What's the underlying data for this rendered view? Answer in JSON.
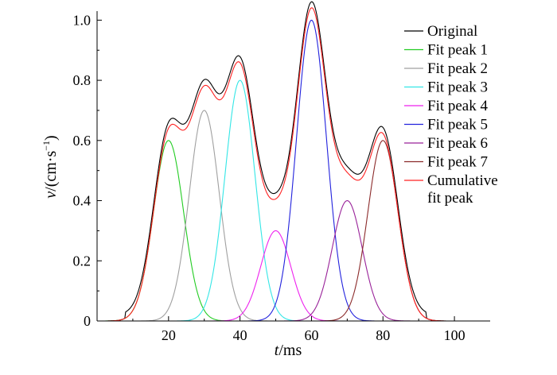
{
  "chart_data": {
    "type": "line",
    "title": "",
    "xlabel_italic": "t",
    "xlabel_unit": "/ms",
    "ylabel_italic": "v",
    "ylabel_unit": "/(cm·s",
    "ylabel_exp": "−1",
    "ylabel_close": ")",
    "xlim": [
      0,
      110
    ],
    "ylim": [
      0,
      1.03
    ],
    "xticks": [
      20,
      40,
      60,
      80,
      100
    ],
    "xtick_labels": [
      "20",
      "40",
      "60",
      "80",
      "100"
    ],
    "yticks": [
      0,
      0.2,
      0.4,
      0.6,
      0.8,
      1.0
    ],
    "ytick_labels": [
      "0",
      "0.2",
      "0.4",
      "0.6",
      "0.8",
      "1.0"
    ],
    "grid": false,
    "legend_position": "top-right",
    "peak_sigma_ms": 4.2,
    "original_offset": 0.02,
    "series": [
      {
        "name": "Original",
        "color": "#000000",
        "kind": "original"
      },
      {
        "name": "Fit peak 1",
        "color": "#22cc22",
        "kind": "gaussian",
        "center": 20,
        "amplitude": 0.6
      },
      {
        "name": "Fit peak 2",
        "color": "#a0a0a0",
        "kind": "gaussian",
        "center": 30,
        "amplitude": 0.7
      },
      {
        "name": "Fit peak 3",
        "color": "#33e6e6",
        "kind": "gaussian",
        "center": 40,
        "amplitude": 0.8
      },
      {
        "name": "Fit peak 4",
        "color": "#ee22ee",
        "kind": "gaussian",
        "center": 50,
        "amplitude": 0.3
      },
      {
        "name": "Fit peak 5",
        "color": "#2222dd",
        "kind": "gaussian",
        "center": 60,
        "amplitude": 1.0
      },
      {
        "name": "Fit peak 6",
        "color": "#992299",
        "kind": "gaussian",
        "center": 70,
        "amplitude": 0.4
      },
      {
        "name": "Fit peak 7",
        "color": "#8b2a2a",
        "kind": "gaussian",
        "center": 80,
        "amplitude": 0.6
      },
      {
        "name": "Cumulative\nfit peak",
        "color": "#ff2020",
        "kind": "cumulative"
      }
    ]
  }
}
